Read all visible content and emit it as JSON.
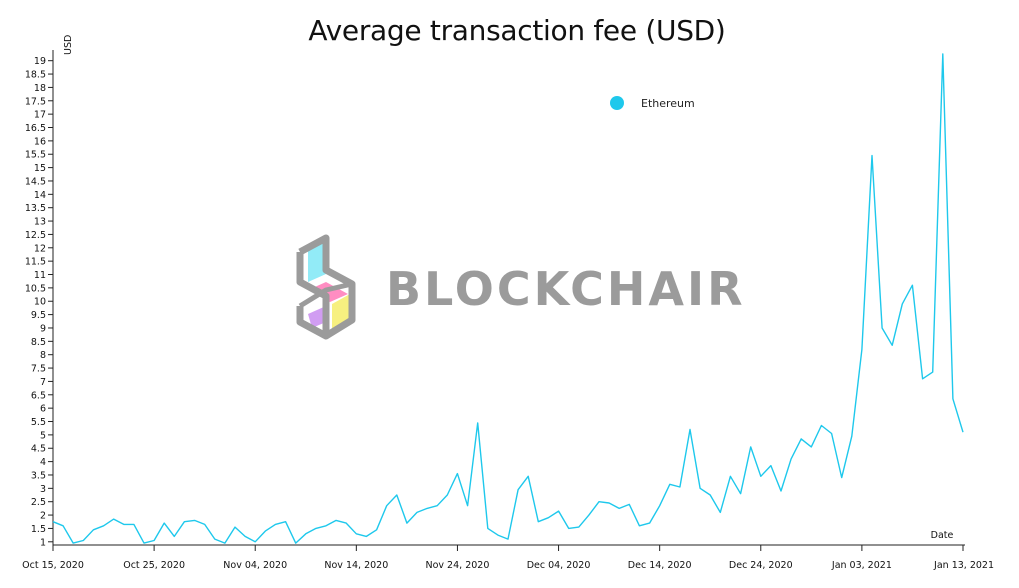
{
  "chart_data": {
    "type": "line",
    "title": "Average transaction fee (USD)",
    "xlabel": "Date",
    "ylabel": "USD",
    "x_start": "2020-10-15",
    "x_ticks": [
      "Oct 15, 2020",
      "Oct 25, 2020",
      "Nov 04, 2020",
      "Nov 14, 2020",
      "Nov 24, 2020",
      "Dec 04, 2020",
      "Dec 14, 2020",
      "Dec 24, 2020",
      "Jan 03, 2021",
      "Jan 13, 2021"
    ],
    "y_ticks": [
      1,
      1.5,
      2,
      2.5,
      3,
      3.5,
      4,
      4.5,
      5,
      5.5,
      6,
      6.5,
      7,
      7.5,
      8,
      8.5,
      9,
      9.5,
      10,
      10.5,
      11,
      11.5,
      12,
      12.5,
      13,
      13.5,
      14,
      14.5,
      15,
      15.5,
      16,
      16.5,
      17,
      17.5,
      18,
      18.5,
      19
    ],
    "ylim": [
      0.88,
      19.4
    ],
    "legend_position": "top-right",
    "grid": false,
    "series": [
      {
        "name": "Ethereum",
        "color": "#1ec8ec",
        "values": [
          1.75,
          1.6,
          0.95,
          1.05,
          1.45,
          1.6,
          1.85,
          1.65,
          1.65,
          0.95,
          1.05,
          1.7,
          1.2,
          1.75,
          1.8,
          1.65,
          1.1,
          0.95,
          1.55,
          1.2,
          1.0,
          1.4,
          1.65,
          1.75,
          0.95,
          1.3,
          1.5,
          1.6,
          1.8,
          1.7,
          1.3,
          1.2,
          1.45,
          2.35,
          2.75,
          1.7,
          2.1,
          2.25,
          2.35,
          2.75,
          3.55,
          2.35,
          5.45,
          1.5,
          1.25,
          1.1,
          2.95,
          3.45,
          1.75,
          1.9,
          2.15,
          1.5,
          1.55,
          2.0,
          2.5,
          2.45,
          2.25,
          2.4,
          1.6,
          1.7,
          2.35,
          3.15,
          3.05,
          5.2,
          3.0,
          2.75,
          2.1,
          3.45,
          2.8,
          4.55,
          3.45,
          3.85,
          2.9,
          4.1,
          4.85,
          4.55,
          5.35,
          5.05,
          3.4,
          4.95,
          8.2,
          15.45,
          9.0,
          8.35,
          9.9,
          10.6,
          7.1,
          7.35,
          19.25,
          6.35,
          5.1
        ]
      }
    ]
  }
}
